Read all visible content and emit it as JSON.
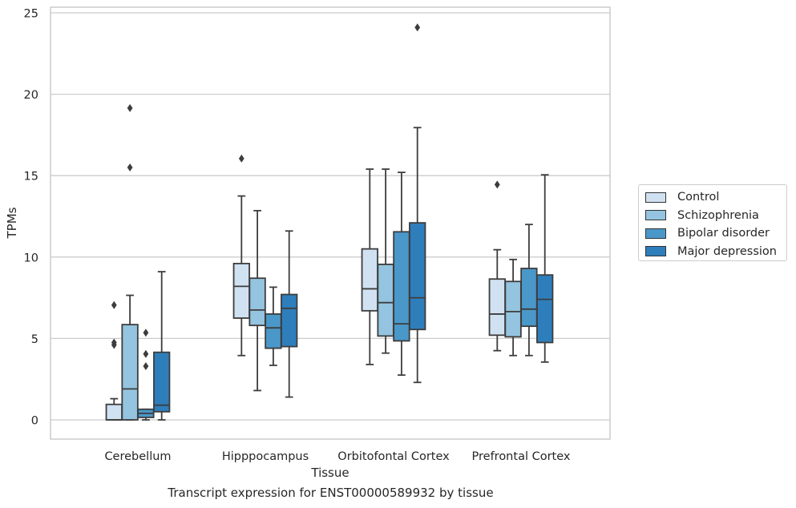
{
  "caption": "Transcript expression for ENST00000589932 by tissue",
  "chart_data": {
    "type": "box",
    "title": "",
    "xlabel": "Tissue",
    "ylabel": "TPMs",
    "ylim": [
      -1.2,
      25.4
    ],
    "yticks": [
      0,
      5,
      10,
      15,
      20,
      25
    ],
    "grid": true,
    "legend_position": "right",
    "categories": [
      "Cerebellum",
      "Hipppocampus",
      "Orbitofontal Cortex",
      "Prefrontal Cortex"
    ],
    "series": [
      {
        "name": "Control",
        "color": "#d0e1f2",
        "boxes": [
          {
            "whisker_low": 0,
            "q1": 0,
            "median": 0,
            "q3": 0.95,
            "whisker_high": 1.3,
            "outliers": [
              7.05,
              4.75,
              4.6
            ]
          },
          {
            "whisker_low": 3.95,
            "q1": 6.25,
            "median": 8.2,
            "q3": 9.6,
            "whisker_high": 13.75,
            "outliers": [
              16.05
            ]
          },
          {
            "whisker_low": 3.4,
            "q1": 6.7,
            "median": 8.05,
            "q3": 10.5,
            "whisker_high": 15.4,
            "outliers": []
          },
          {
            "whisker_low": 4.25,
            "q1": 5.2,
            "median": 6.5,
            "q3": 8.65,
            "whisker_high": 10.45,
            "outliers": [
              14.45
            ]
          }
        ]
      },
      {
        "name": "Schizophrenia",
        "color": "#94c4df",
        "boxes": [
          {
            "whisker_low": 0,
            "q1": 0,
            "median": 1.9,
            "q3": 5.85,
            "whisker_high": 7.65,
            "outliers": [
              19.15,
              15.5
            ]
          },
          {
            "whisker_low": 1.8,
            "q1": 5.8,
            "median": 6.75,
            "q3": 8.7,
            "whisker_high": 12.85,
            "outliers": []
          },
          {
            "whisker_low": 4.1,
            "q1": 5.15,
            "median": 7.2,
            "q3": 9.55,
            "whisker_high": 15.4,
            "outliers": []
          },
          {
            "whisker_low": 3.95,
            "q1": 5.1,
            "median": 6.65,
            "q3": 8.5,
            "whisker_high": 9.85,
            "outliers": []
          }
        ]
      },
      {
        "name": "Bipolar disorder",
        "color": "#4a98c9",
        "boxes": [
          {
            "whisker_low": 0,
            "q1": 0.15,
            "median": 0.4,
            "q3": 0.65,
            "whisker_high": 0.65,
            "outliers": [
              5.35,
              4.05,
              3.3
            ]
          },
          {
            "whisker_low": 3.35,
            "q1": 4.4,
            "median": 5.65,
            "q3": 6.5,
            "whisker_high": 8.15,
            "outliers": []
          },
          {
            "whisker_low": 2.75,
            "q1": 4.85,
            "median": 5.9,
            "q3": 11.55,
            "whisker_high": 15.2,
            "outliers": []
          },
          {
            "whisker_low": 3.95,
            "q1": 5.75,
            "median": 6.8,
            "q3": 9.3,
            "whisker_high": 12.0,
            "outliers": []
          }
        ]
      },
      {
        "name": "Major depression",
        "color": "#2e7ebc",
        "boxes": [
          {
            "whisker_low": 0,
            "q1": 0.5,
            "median": 0.9,
            "q3": 4.15,
            "whisker_high": 9.1,
            "outliers": []
          },
          {
            "whisker_low": 1.4,
            "q1": 4.5,
            "median": 6.85,
            "q3": 7.7,
            "whisker_high": 11.6,
            "outliers": []
          },
          {
            "whisker_low": 2.3,
            "q1": 5.55,
            "median": 7.5,
            "q3": 12.1,
            "whisker_high": 17.95,
            "outliers": [
              24.1
            ]
          },
          {
            "whisker_low": 3.55,
            "q1": 4.75,
            "median": 7.4,
            "q3": 8.9,
            "whisker_high": 15.05,
            "outliers": []
          }
        ]
      }
    ]
  }
}
